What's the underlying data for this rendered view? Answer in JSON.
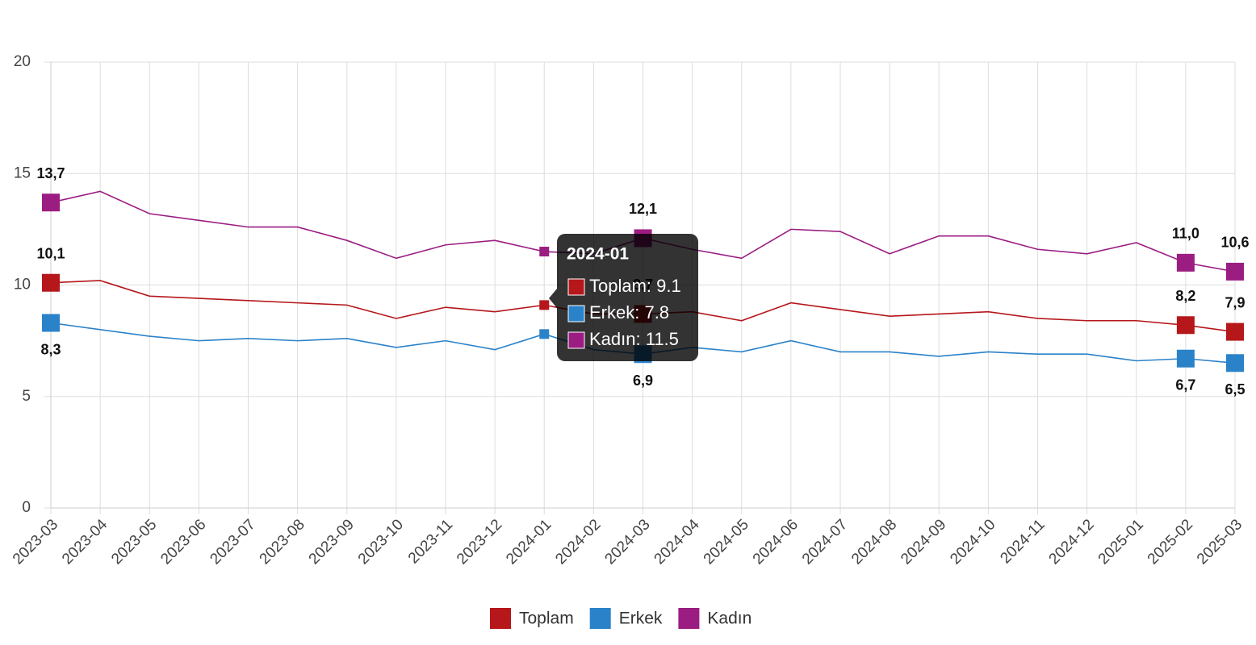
{
  "chart_data": {
    "type": "line",
    "categories": [
      "2023-03",
      "2023-04",
      "2023-05",
      "2023-06",
      "2023-07",
      "2023-08",
      "2023-09",
      "2023-10",
      "2023-11",
      "2023-12",
      "2024-01",
      "2024-02",
      "2024-03",
      "2024-04",
      "2024-05",
      "2024-06",
      "2024-07",
      "2024-08",
      "2024-09",
      "2024-10",
      "2024-11",
      "2024-12",
      "2025-01",
      "2025-02",
      "2025-03"
    ],
    "series": [
      {
        "name": "Toplam",
        "color": "#b5171b",
        "values": [
          10.1,
          10.2,
          9.5,
          9.4,
          9.3,
          9.2,
          9.1,
          8.5,
          9.0,
          8.8,
          9.1,
          8.7,
          8.7,
          8.8,
          8.4,
          9.2,
          8.9,
          8.6,
          8.7,
          8.8,
          8.5,
          8.4,
          8.4,
          8.2,
          7.9
        ],
        "value_labels": [
          "10,1",
          null,
          null,
          null,
          null,
          null,
          null,
          null,
          null,
          null,
          null,
          null,
          "8,7",
          null,
          null,
          null,
          null,
          null,
          null,
          null,
          null,
          null,
          null,
          "8,2",
          "7,9"
        ]
      },
      {
        "name": "Erkek",
        "color": "#2a82c9",
        "values": [
          8.3,
          8.0,
          7.7,
          7.5,
          7.6,
          7.5,
          7.6,
          7.2,
          7.5,
          7.1,
          7.8,
          7.1,
          6.9,
          7.2,
          7.0,
          7.5,
          7.0,
          7.0,
          6.8,
          7.0,
          6.9,
          6.9,
          6.6,
          6.7,
          6.5
        ],
        "value_labels": [
          "8,3",
          null,
          null,
          null,
          null,
          null,
          null,
          null,
          null,
          null,
          null,
          null,
          "6,9",
          null,
          null,
          null,
          null,
          null,
          null,
          null,
          null,
          null,
          null,
          "6,7",
          "6,5"
        ]
      },
      {
        "name": "Kadın",
        "color": "#9b1d82",
        "values": [
          13.7,
          14.2,
          13.2,
          12.9,
          12.6,
          12.6,
          12.0,
          11.2,
          11.8,
          12.0,
          11.5,
          11.4,
          12.1,
          11.6,
          11.2,
          12.5,
          12.4,
          11.4,
          12.2,
          12.2,
          11.6,
          11.4,
          11.9,
          11.0,
          10.6
        ],
        "value_labels": [
          "13,7",
          null,
          null,
          null,
          null,
          null,
          null,
          null,
          null,
          null,
          null,
          null,
          "12,1",
          null,
          null,
          null,
          null,
          null,
          null,
          null,
          null,
          null,
          null,
          "11,0",
          "10,6"
        ]
      }
    ],
    "ylim": [
      0,
      20
    ],
    "yticks": [
      0,
      5,
      10,
      15,
      20
    ],
    "grid": true,
    "tooltip": {
      "title": "2024-01",
      "lines": [
        "Toplam: 9.1",
        "Erkek: 7.8",
        "Kadın: 11.5"
      ]
    }
  }
}
